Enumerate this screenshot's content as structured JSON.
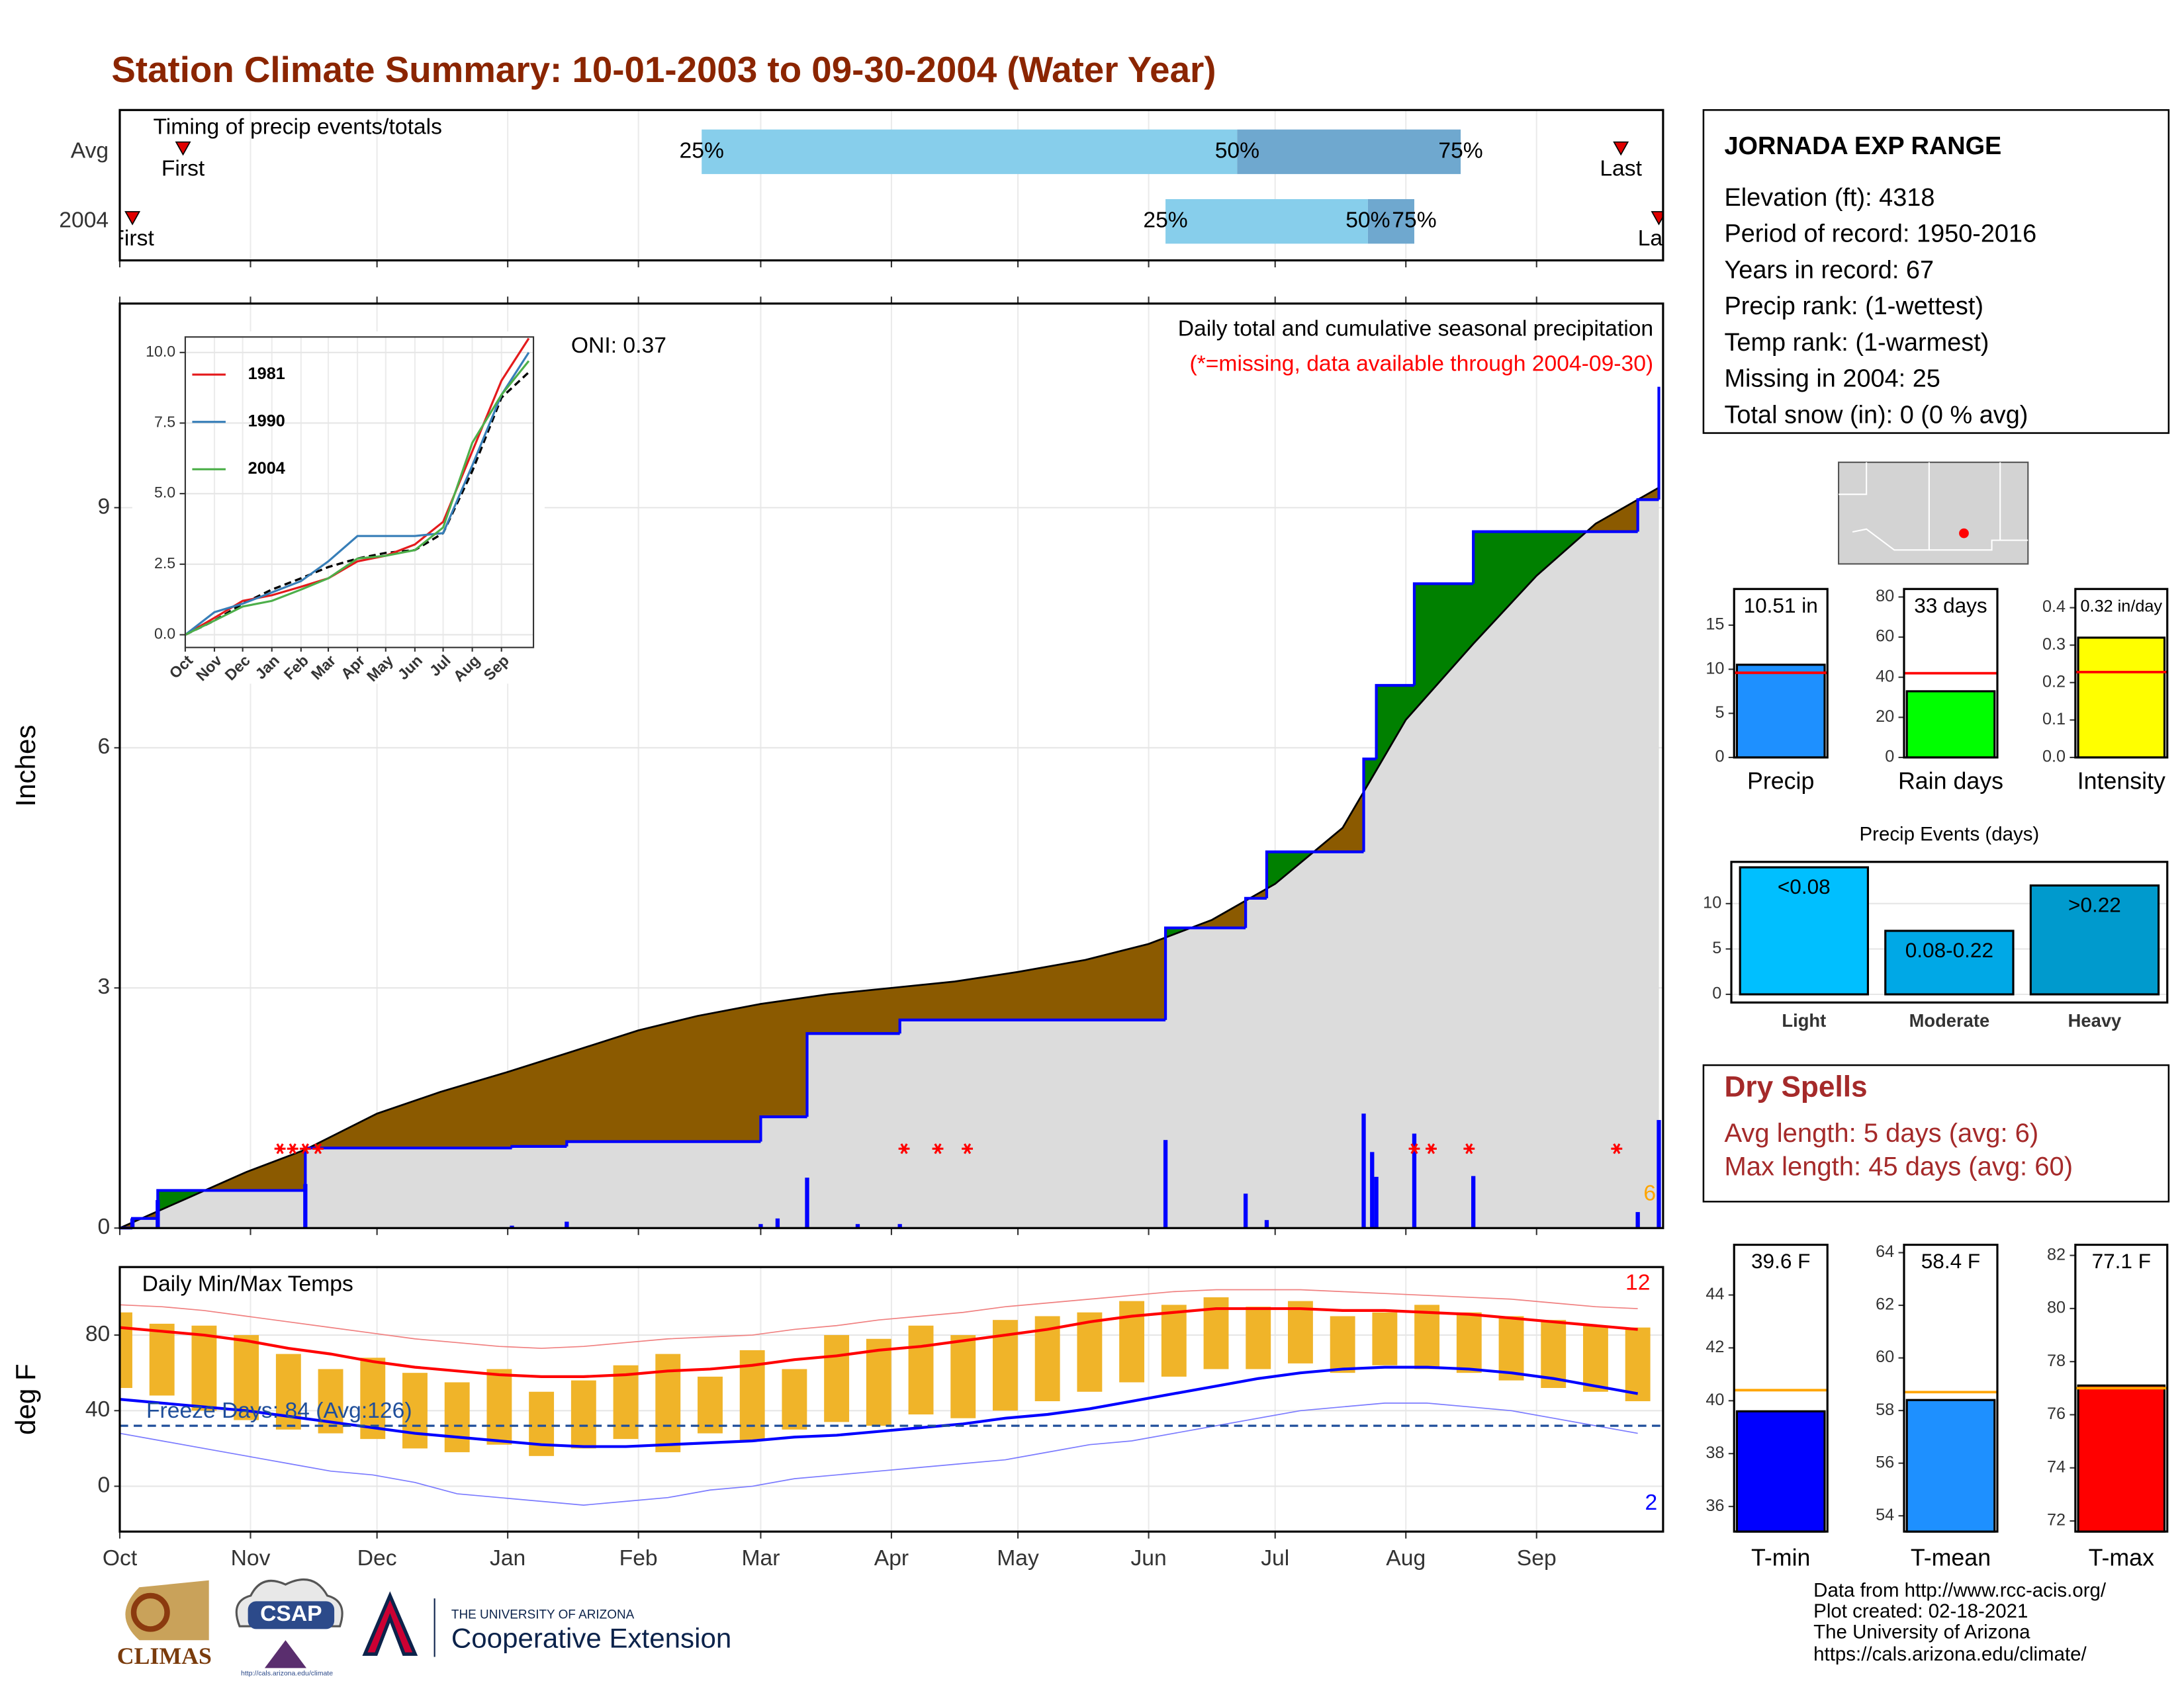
{
  "page_title": "Station Climate Summary: 10-01-2003 to 09-30-2004 (Water Year)",
  "chart_data": [
    {
      "type": "timing",
      "title": "Timing of precip events/totals",
      "markers": [
        "First",
        "25%",
        "50%",
        "75%",
        "Last"
      ],
      "rows": [
        {
          "name": "Avg",
          "values": [
            15,
            138,
            265,
            318,
            356
          ]
        },
        {
          "name": "2004",
          "values": [
            3,
            248,
            296,
            307,
            365
          ]
        }
      ],
      "xlim": [
        0,
        366
      ],
      "xticks": [
        0,
        31,
        61,
        92,
        123,
        152,
        183,
        213,
        244,
        274,
        305,
        336
      ],
      "grid": true,
      "colors": [
        "#87ceeb",
        "#6fa8cf"
      ],
      "marker_color": "#e00000"
    },
    {
      "type": "area",
      "title": "Daily total and cumulative seasonal precipitation",
      "subtitle": "(*=missing, data available through 2004-09-30)",
      "subtitle_color": "#ff0000",
      "annotations": [
        "ONI: 0.37",
        "6"
      ],
      "highlight_color": "#ffa500",
      "ylabel": "Inches",
      "xlim": [
        0,
        366
      ],
      "xticks": [
        0,
        31,
        61,
        92,
        123,
        152,
        183,
        213,
        244,
        274,
        305,
        336
      ],
      "ylim": [
        0,
        11.55
      ],
      "yticks": [
        0,
        3,
        6,
        9
      ],
      "grid": true,
      "average": {
        "color": "#000000",
        "x": [
          0,
          15,
          30,
          44,
          61,
          76,
          92,
          107,
          123,
          137,
          152,
          168,
          183,
          198,
          213,
          229,
          244,
          259,
          274,
          290,
          305,
          321,
          336,
          350,
          365
        ],
        "values": [
          0,
          0.35,
          0.7,
          0.98,
          1.43,
          1.7,
          1.95,
          2.2,
          2.47,
          2.65,
          2.8,
          2.92,
          3.0,
          3.08,
          3.2,
          3.35,
          3.55,
          3.85,
          4.3,
          5.0,
          6.35,
          7.3,
          8.15,
          8.8,
          9.25
        ]
      },
      "observed": {
        "color": "#0000ff",
        "x": [
          0,
          3,
          9,
          44,
          93,
          106,
          152,
          163,
          185,
          248,
          267,
          272,
          295,
          298,
          307,
          321,
          360,
          365
        ],
        "values": [
          0,
          0.12,
          0.47,
          1.0,
          1.02,
          1.08,
          1.39,
          2.43,
          2.6,
          3.75,
          4.12,
          4.7,
          5.86,
          6.78,
          8.05,
          8.7,
          9.1,
          10.51
        ]
      },
      "daily": {
        "color": "#0000ff",
        "x": [
          3,
          9,
          44,
          93,
          106,
          152,
          156,
          163,
          175,
          185,
          248,
          267,
          272,
          295,
          297,
          298,
          307,
          321,
          360,
          365
        ],
        "values": [
          0.12,
          0.35,
          0.55,
          0.03,
          0.08,
          0.05,
          0.12,
          0.63,
          0.05,
          0.05,
          1.1,
          0.43,
          0.1,
          1.43,
          0.95,
          0.64,
          1.18,
          0.65,
          0.2,
          1.35
        ]
      },
      "missing": [
        38,
        41,
        44,
        47,
        186,
        194,
        201,
        307,
        311,
        320,
        355
      ],
      "deficit_color": "#8b5a00",
      "surplus_color": "#008000",
      "base_color": "#dcdcdc"
    },
    {
      "type": "line",
      "x": [
        0,
        31,
        61,
        92,
        123,
        152,
        183,
        213,
        244,
        274,
        305,
        336,
        365
      ],
      "average": {
        "color": "#000000",
        "values": [
          0,
          0.5,
          1.1,
          1.6,
          2.0,
          2.4,
          2.7,
          2.9,
          3.0,
          3.6,
          5.8,
          8.4,
          9.3
        ]
      },
      "series": [
        {
          "name": "1981",
          "color": "#e41a1c",
          "values": [
            0,
            0.6,
            1.2,
            1.4,
            1.7,
            2.0,
            2.6,
            2.8,
            3.2,
            4.0,
            6.5,
            9.0,
            10.5
          ]
        },
        {
          "name": "1990",
          "color": "#377eb8",
          "values": [
            0,
            0.8,
            1.1,
            1.5,
            1.9,
            2.6,
            3.5,
            3.5,
            3.5,
            3.6,
            6.0,
            8.5,
            10.0
          ]
        },
        {
          "name": "2004",
          "color": "#4daf4a",
          "values": [
            0,
            0.5,
            1.0,
            1.2,
            1.6,
            2.0,
            2.7,
            2.8,
            3.0,
            3.8,
            6.8,
            8.5,
            9.7
          ]
        }
      ],
      "xlim": [
        0,
        370
      ],
      "xticks": [
        {
          "value": 0,
          "label": "Oct"
        },
        {
          "value": 31,
          "label": "Nov"
        },
        {
          "value": 61,
          "label": "Dec"
        },
        {
          "value": 92,
          "label": "Jan"
        },
        {
          "value": 123,
          "label": "Feb"
        },
        {
          "value": 152,
          "label": "Mar"
        },
        {
          "value": 183,
          "label": "Apr"
        },
        {
          "value": 213,
          "label": "May"
        },
        {
          "value": 244,
          "label": "Jun"
        },
        {
          "value": 274,
          "label": "Jul"
        },
        {
          "value": 305,
          "label": "Aug"
        },
        {
          "value": 336,
          "label": "Sep"
        }
      ],
      "ylim": [
        -0.45,
        10.55
      ],
      "yticks": [
        {
          "value": 0,
          "label": "0.0"
        },
        2.5,
        {
          "value": 5,
          "label": "5.0"
        },
        7.5,
        {
          "value": 10,
          "label": "10.0"
        }
      ],
      "grid": true
    },
    {
      "type": "temperature",
      "title": "Daily Min/Max Temps",
      "ylabel": "deg F",
      "annotations": [
        "12",
        "2",
        "Freeze Days: 84 (Avg:126)"
      ],
      "x": [
        0,
        10,
        20,
        30,
        40,
        50,
        60,
        70,
        80,
        90,
        100,
        110,
        120,
        130,
        140,
        150,
        160,
        170,
        180,
        190,
        200,
        210,
        220,
        230,
        240,
        250,
        260,
        270,
        280,
        290,
        300,
        310,
        320,
        330,
        340,
        350,
        360
      ],
      "max": [
        92,
        86,
        85,
        80,
        70,
        62,
        68,
        60,
        55,
        62,
        50,
        56,
        64,
        70,
        58,
        72,
        62,
        80,
        78,
        85,
        80,
        88,
        90,
        92,
        98,
        96,
        100,
        95,
        98,
        90,
        92,
        96,
        92,
        90,
        88,
        85,
        84
      ],
      "min": [
        52,
        48,
        40,
        35,
        30,
        28,
        25,
        20,
        18,
        22,
        16,
        20,
        25,
        18,
        28,
        24,
        30,
        34,
        32,
        38,
        36,
        40,
        45,
        50,
        55,
        58,
        62,
        62,
        65,
        60,
        64,
        62,
        60,
        56,
        52,
        50,
        45
      ],
      "avg_max": [
        84,
        82,
        80,
        77,
        73,
        70,
        66,
        63,
        61,
        59,
        58,
        58,
        59,
        61,
        62,
        64,
        67,
        69,
        72,
        74,
        77,
        80,
        83,
        87,
        90,
        92,
        94,
        94,
        94,
        93,
        93,
        92,
        91,
        89,
        87,
        85,
        83
      ],
      "avg_min": [
        46,
        44,
        42,
        40,
        37,
        34,
        31,
        28,
        26,
        24,
        22,
        21,
        21,
        22,
        23,
        24,
        26,
        27,
        29,
        31,
        33,
        36,
        38,
        41,
        45,
        49,
        53,
        57,
        60,
        62,
        63,
        63,
        62,
        60,
        57,
        53,
        49
      ],
      "record_max": [
        96,
        95,
        93,
        90,
        87,
        84,
        81,
        78,
        76,
        74,
        73,
        74,
        76,
        78,
        79,
        80,
        83,
        85,
        88,
        90,
        92,
        95,
        97,
        99,
        101,
        103,
        104,
        104,
        104,
        103,
        102,
        101,
        100,
        99,
        97,
        95,
        94
      ],
      "record_min": [
        28,
        24,
        20,
        16,
        12,
        8,
        6,
        2,
        -4,
        -6,
        -8,
        -10,
        -8,
        -6,
        -2,
        0,
        4,
        6,
        8,
        10,
        12,
        14,
        18,
        22,
        24,
        28,
        32,
        36,
        40,
        42,
        44,
        44,
        42,
        40,
        36,
        32,
        28
      ],
      "freeze": 32,
      "bar_color": "#f0b429",
      "max_color": "#ff0000",
      "min_color": "#0000ff",
      "record_max_color": "#f08080",
      "record_min_color": "#7b7bff",
      "freeze_color": "#1f4e9a",
      "xlim": [
        0,
        366
      ],
      "xticks": [
        {
          "value": 0,
          "label": "Oct"
        },
        {
          "value": 31,
          "label": "Nov"
        },
        {
          "value": 61,
          "label": "Dec"
        },
        {
          "value": 92,
          "label": "Jan"
        },
        {
          "value": 123,
          "label": "Feb"
        },
        {
          "value": 152,
          "label": "Mar"
        },
        {
          "value": 183,
          "label": "Apr"
        },
        {
          "value": 213,
          "label": "May"
        },
        {
          "value": 244,
          "label": "Jun"
        },
        {
          "value": 274,
          "label": "Jul"
        },
        {
          "value": 305,
          "label": "Aug"
        },
        {
          "value": 336,
          "label": "Sep"
        }
      ],
      "ylim": [
        -24,
        116
      ],
      "yticks": [
        0,
        40,
        80
      ],
      "grid": true
    },
    {
      "type": "bar",
      "categories": [
        "Precip"
      ],
      "values": [
        10.51
      ],
      "value_labels": [
        "10.51 in"
      ],
      "colors": [
        "#1e90ff"
      ],
      "reference": 9.6,
      "reference_color": "#ff0000",
      "ylim": [
        0,
        19.1
      ],
      "yticks": [
        0,
        5,
        10,
        15
      ],
      "grid": false
    },
    {
      "type": "bar",
      "categories": [
        "Rain days"
      ],
      "values": [
        33
      ],
      "value_labels": [
        "33 days"
      ],
      "colors": [
        "#00ff00"
      ],
      "reference": 42,
      "reference_color": "#ff0000",
      "ylim": [
        0,
        84
      ],
      "yticks": [
        0,
        20,
        40,
        60,
        80
      ],
      "grid": false
    },
    {
      "type": "bar",
      "categories": [
        "Intensity"
      ],
      "values": [
        0.32
      ],
      "value_labels": [
        "0.32 in/day"
      ],
      "colors": [
        "#ffff00"
      ],
      "reference": 0.228,
      "reference_color": "#ff0000",
      "ylim": [
        0,
        0.45
      ],
      "yticks": [
        {
          "value": 0,
          "label": "0.0"
        },
        0.1,
        0.2,
        0.3,
        0.4
      ],
      "grid": false
    },
    {
      "type": "bar",
      "title": "Precip Events (days)",
      "categories": [
        "Light",
        "Moderate",
        "Heavy"
      ],
      "values": [
        14,
        7,
        12
      ],
      "bar_labels": [
        "<0.08",
        "0.08-0.22",
        ">0.22"
      ],
      "colors": [
        "#00bfff",
        "#00a8e6",
        "#009acd"
      ],
      "ylim": [
        -0.9,
        14.6
      ],
      "yticks": [
        0,
        5,
        10
      ],
      "grid": true
    },
    {
      "type": "bar",
      "categories": [
        "T-min"
      ],
      "values": [
        39.6
      ],
      "value_labels": [
        "39.6 F"
      ],
      "colors": [
        "#0000ff"
      ],
      "reference": 40.4,
      "reference_color": "#ffa500",
      "ylim": [
        35.05,
        45.9
      ],
      "yticks": [
        36,
        38,
        40,
        42,
        44
      ],
      "grid": false
    },
    {
      "type": "bar",
      "categories": [
        "T-mean"
      ],
      "values": [
        58.4
      ],
      "value_labels": [
        "58.4 F"
      ],
      "colors": [
        "#1e90ff"
      ],
      "reference": 58.7,
      "reference_color": "#ffa500",
      "ylim": [
        53.4,
        64.3
      ],
      "yticks": [
        54,
        56,
        58,
        60,
        62,
        64
      ],
      "grid": false
    },
    {
      "type": "bar",
      "categories": [
        "T-max"
      ],
      "values": [
        77.1
      ],
      "value_labels": [
        "77.1 F"
      ],
      "colors": [
        "#ff0000"
      ],
      "reference": 77.0,
      "reference_color": "#ffa500",
      "ylim": [
        71.6,
        82.4
      ],
      "yticks": [
        72,
        74,
        76,
        78,
        80,
        82
      ],
      "grid": false
    }
  ],
  "station_info": {
    "title": "JORNADA EXP RANGE",
    "lines": [
      "Elevation (ft): 4318",
      "Period of record: 1950-2016",
      "Years in record: 67",
      "Precip rank:  (1-wettest)",
      "Temp rank:  (1-warmest)",
      "Missing in 2004: 25",
      "Total snow (in): 0 (0 % avg)"
    ]
  },
  "dry_spells": {
    "title": "Dry Spells",
    "lines": [
      "Avg length: 5 days (avg: 6)",
      "Max length: 45 days (avg: 60)"
    ]
  },
  "footer": {
    "credits": [
      "Data from http://www.rcc-acis.org/",
      "Plot created: 02-18-2021",
      "The University of Arizona",
      "https://cals.arizona.edu/climate/"
    ],
    "logos": [
      "CLIMAS",
      "CSAP",
      "http://cals.arizona.edu/climate",
      "THE UNIVERSITY OF ARIZONA",
      "Cooperative Extension"
    ]
  }
}
